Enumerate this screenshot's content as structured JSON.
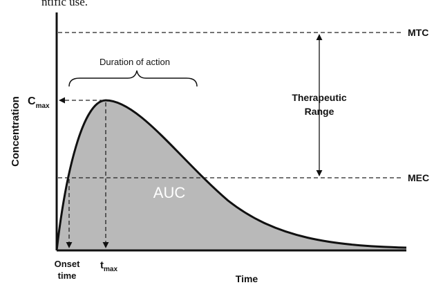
{
  "header_text": "ntific use.",
  "lines": {
    "upper": "MTC",
    "lower": "MEC"
  },
  "labels": {
    "duration": "Duration of action",
    "cmax": {
      "main": "C",
      "sub": "max"
    },
    "therapeutic_range": [
      "Therapeutic",
      "Range"
    ],
    "auc": "AUC",
    "onset_time": [
      "Onset",
      "time"
    ],
    "tmax": {
      "main": "t",
      "sub": "max"
    }
  },
  "axes": {
    "y_label": "Concentration",
    "x_label": "Time"
  }
}
